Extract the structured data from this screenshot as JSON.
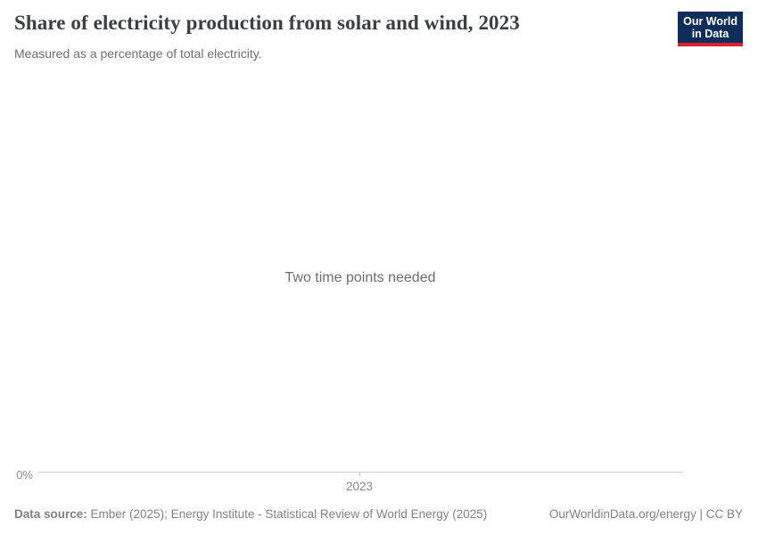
{
  "header": {
    "title": "Share of electricity production from solar and wind, 2023",
    "subtitle": "Measured as a percentage of total electricity.",
    "logo": {
      "line1": "Our World",
      "line2": "in Data"
    }
  },
  "chart": {
    "message": "Two time points needed",
    "y_axis_label": "0%",
    "x_tick_label": "2023"
  },
  "chart_data": {
    "type": "line",
    "title": "Share of electricity production from solar and wind, 2023",
    "subtitle": "Measured as a percentage of total electricity.",
    "series": [],
    "x_ticks": [
      "2023"
    ],
    "y_ticks": [
      "0%"
    ],
    "annotations": [
      "Two time points needed"
    ],
    "note": "Plot area is empty: no data series rendered; only the 0% baseline and a single 2023 x-axis tick are shown with a 'Two time points needed' placeholder message."
  },
  "footer": {
    "source_label": "Data source:",
    "source_text": " Ember (2025); Energy Institute - Statistical Review of World Energy (2025)",
    "credit": "OurWorldinData.org/energy | CC BY"
  },
  "colors": {
    "logo_background": "#0d2e5a",
    "logo_accent_red": "#d8232f",
    "title_text": "#3a3f44",
    "subtitle_text": "#6e6e6e",
    "message_text": "#6e6e6e",
    "axis_line": "#cccccc",
    "axis_label": "#8a8a8a",
    "footer_text": "#828282"
  }
}
